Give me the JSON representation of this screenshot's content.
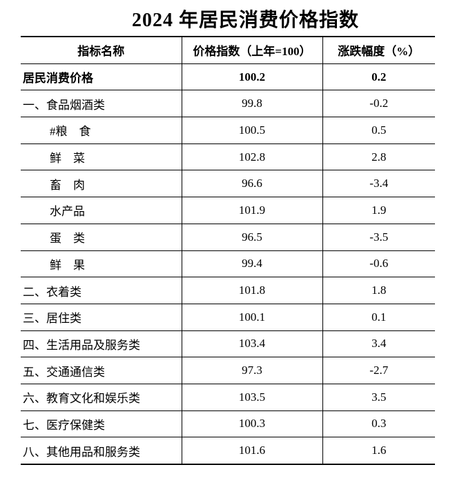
{
  "title": "2024 年居民消费价格指数",
  "colors": {
    "text": "#000000",
    "background": "#ffffff",
    "border": "#000000"
  },
  "table": {
    "headers": [
      "指标名称",
      "价格指数（上年=100）",
      "涨跌幅度（%）"
    ],
    "rows": [
      {
        "name": "居民消费价格",
        "index": "100.2",
        "change": "0.2",
        "bold": true,
        "indent": 0
      },
      {
        "name": "一、食品烟酒类",
        "index": "99.8",
        "change": "-0.2",
        "bold": false,
        "indent": 0
      },
      {
        "name": "#粮　食",
        "index": "100.5",
        "change": "0.5",
        "bold": false,
        "indent": 1
      },
      {
        "name": "鲜　菜",
        "index": "102.8",
        "change": "2.8",
        "bold": false,
        "indent": 1
      },
      {
        "name": "畜　肉",
        "index": "96.6",
        "change": "-3.4",
        "bold": false,
        "indent": 1
      },
      {
        "name": "水产品",
        "index": "101.9",
        "change": "1.9",
        "bold": false,
        "indent": 1
      },
      {
        "name": "蛋　类",
        "index": "96.5",
        "change": "-3.5",
        "bold": false,
        "indent": 1
      },
      {
        "name": "鲜　果",
        "index": "99.4",
        "change": "-0.6",
        "bold": false,
        "indent": 1
      },
      {
        "name": "二、衣着类",
        "index": "101.8",
        "change": "1.8",
        "bold": false,
        "indent": 0
      },
      {
        "name": "三、居住类",
        "index": "100.1",
        "change": "0.1",
        "bold": false,
        "indent": 0
      },
      {
        "name": "四、生活用品及服务类",
        "index": "103.4",
        "change": "3.4",
        "bold": false,
        "indent": 0
      },
      {
        "name": "五、交通通信类",
        "index": "97.3",
        "change": "-2.7",
        "bold": false,
        "indent": 0
      },
      {
        "name": "六、教育文化和娱乐类",
        "index": "103.5",
        "change": "3.5",
        "bold": false,
        "indent": 0
      },
      {
        "name": "七、医疗保健类",
        "index": "100.3",
        "change": "0.3",
        "bold": false,
        "indent": 0
      },
      {
        "name": "八、其他用品和服务类",
        "index": "101.6",
        "change": "1.6",
        "bold": false,
        "indent": 0
      }
    ]
  }
}
